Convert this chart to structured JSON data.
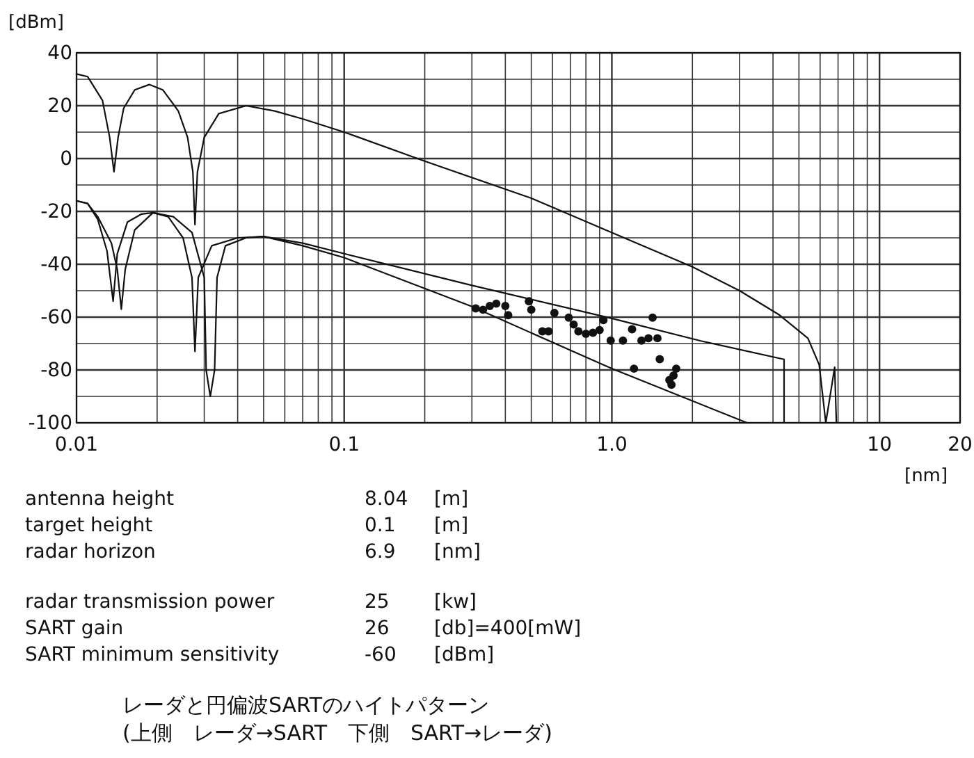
{
  "chart_data": {
    "type": "line",
    "log": "x",
    "grid": true,
    "marker": "none",
    "line_style": "solid",
    "xlabel": "[nm]",
    "ylabel": "[dBm]",
    "xlim": [
      0.01,
      20
    ],
    "ylim": [
      -100,
      40
    ],
    "xticks": [
      {
        "value": 0.01,
        "label": "0.01"
      },
      {
        "value": 0.02,
        "label": null
      },
      {
        "value": 0.03,
        "label": null
      },
      {
        "value": 0.04,
        "label": null
      },
      {
        "value": 0.05,
        "label": null
      },
      {
        "value": 0.06,
        "label": null
      },
      {
        "value": 0.07,
        "label": null
      },
      {
        "value": 0.08,
        "label": null
      },
      {
        "value": 0.09,
        "label": null
      },
      {
        "value": 0.1,
        "label": "0.1"
      },
      {
        "value": 0.2,
        "label": null
      },
      {
        "value": 0.3,
        "label": null
      },
      {
        "value": 0.4,
        "label": null
      },
      {
        "value": 0.5,
        "label": null
      },
      {
        "value": 0.6,
        "label": null
      },
      {
        "value": 0.7,
        "label": null
      },
      {
        "value": 0.8,
        "label": null
      },
      {
        "value": 0.9,
        "label": null
      },
      {
        "value": 1,
        "label": "1.0"
      },
      {
        "value": 2,
        "label": null
      },
      {
        "value": 3,
        "label": null
      },
      {
        "value": 4,
        "label": null
      },
      {
        "value": 5,
        "label": null
      },
      {
        "value": 6,
        "label": null
      },
      {
        "value": 7,
        "label": null
      },
      {
        "value": 8,
        "label": null
      },
      {
        "value": 9,
        "label": null
      },
      {
        "value": 10,
        "label": "10"
      },
      {
        "value": 20,
        "label": "20"
      }
    ],
    "yticks": [
      -100,
      {
        "value": -90,
        "label": null
      },
      -80,
      {
        "value": -70,
        "label": null
      },
      -60,
      {
        "value": -50,
        "label": null
      },
      -40,
      {
        "value": -30,
        "label": null
      },
      -20,
      {
        "value": -10,
        "label": null
      },
      0,
      {
        "value": 10,
        "label": null
      },
      20,
      {
        "value": 30,
        "label": null
      },
      40
    ],
    "series": [
      {
        "color": "#111111",
        "x": [
          0.01,
          0.011,
          0.0125,
          0.0133,
          0.0138,
          0.0143,
          0.015,
          0.0165,
          0.0187,
          0.021,
          0.024,
          0.026,
          0.0272,
          0.0277,
          0.0283,
          0.03,
          0.034,
          0.043,
          0.055,
          0.07,
          0.1,
          0.2,
          0.5,
          1,
          2,
          3,
          4.2,
          5.4,
          5.95,
          6.3,
          6.8,
          6.9
        ],
        "values": [
          32,
          31,
          22,
          8,
          -5,
          8,
          19,
          26,
          28,
          26,
          18,
          8,
          -5,
          -25,
          -5,
          8,
          17,
          20,
          18,
          15,
          10,
          -1,
          -15,
          -28,
          -41,
          -50,
          -59,
          -68,
          -78,
          -100,
          -79,
          -100
        ]
      },
      {
        "color": "#111111",
        "x": [
          0.01,
          0.011,
          0.012,
          0.013,
          0.0137,
          0.0142,
          0.0155,
          0.0175,
          0.0193,
          0.022,
          0.025,
          0.027,
          0.0277,
          0.0285,
          0.032,
          0.04,
          0.05,
          0.07,
          0.1,
          0.3,
          1,
          2.15,
          4.4,
          4.4
        ],
        "values": [
          -16,
          -17,
          -23,
          -35,
          -54,
          -36,
          -24,
          -21,
          -20.5,
          -22,
          -30,
          -45,
          -73,
          -45,
          -33,
          -30,
          -29.5,
          -32,
          -36,
          -48,
          -60.5,
          -69,
          -76,
          -100
        ]
      },
      {
        "color": "#111111",
        "x": [
          0.01,
          0.011,
          0.012,
          0.0135,
          0.0142,
          0.0147,
          0.0152,
          0.0165,
          0.0193,
          0.023,
          0.027,
          0.03,
          0.0305,
          0.0316,
          0.0328,
          0.0335,
          0.036,
          0.043,
          0.05,
          0.07,
          0.1,
          0.3,
          1,
          3.2
        ],
        "values": [
          -16,
          -17,
          -22,
          -32,
          -42,
          -57,
          -42,
          -27,
          -20.5,
          -22,
          -28,
          -45,
          -80,
          -90,
          -80,
          -45,
          -33,
          -30,
          -29.5,
          -33,
          -37.5,
          -56,
          -79.5,
          -100
        ]
      },
      {
        "type": "scatter",
        "color": "#111111",
        "marker": "circle",
        "x": [
          0.31,
          0.33,
          0.35,
          0.37,
          0.4,
          0.41,
          0.49,
          0.5,
          0.55,
          0.58,
          0.61,
          0.69,
          0.72,
          0.75,
          0.8,
          0.85,
          0.9,
          0.93,
          0.99,
          1.1,
          1.19,
          1.29,
          1.37,
          1.42,
          1.48,
          1.51,
          1.21,
          1.64,
          1.7,
          1.74,
          1.67
        ],
        "values": [
          -56.7,
          -57.2,
          -55.8,
          -54.9,
          -55.8,
          -59.3,
          -54,
          -57.2,
          -65.4,
          -65.4,
          -58.4,
          -60.2,
          -62.8,
          -65.4,
          -66.3,
          -65.9,
          -64.9,
          -61.1,
          -68.9,
          -68.9,
          -64.6,
          -68.9,
          -68,
          -60.2,
          -68,
          -75.9,
          -79.5,
          -83.8,
          -82.1,
          -79.5,
          -85.6
        ]
      }
    ],
    "annotations": [
      "antenna height\t8.04\t[m]",
      "target height\t0.1\t[m]",
      "radar horizon\t6.9\t[nm]",
      "radar transmission power\t25\t[kw]",
      "SART gain\t26\t[db]=400[mW]",
      "SART minimum sensitivity\t-60\t[dBm]",
      "レーダと円偏波SARTのハイトパターン",
      "(上側　レーダ→SART　下側　SART→レーダ)"
    ]
  }
}
